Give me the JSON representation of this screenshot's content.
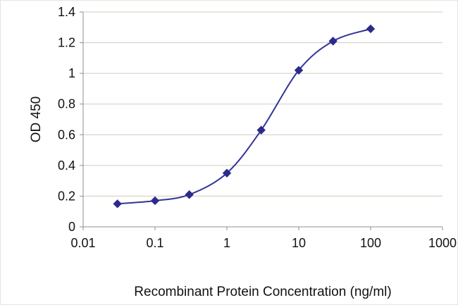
{
  "chart_data": {
    "type": "line",
    "x": [
      0.03,
      0.1,
      0.3,
      1,
      3,
      10,
      30,
      100
    ],
    "y": [
      0.15,
      0.17,
      0.21,
      0.35,
      0.63,
      1.02,
      1.21,
      1.29
    ],
    "title": "",
    "xlabel": "Recombinant Protein Concentration (ng/ml)",
    "ylabel": "OD 450",
    "x_scale": "log",
    "xlim": [
      0.01,
      1000
    ],
    "ylim": [
      0,
      1.4
    ],
    "x_ticks": [
      0.01,
      0.1,
      1,
      10,
      100,
      1000
    ],
    "x_tick_labels": [
      "0.01",
      "0.1",
      "1",
      "10",
      "100",
      "1000"
    ],
    "y_ticks": [
      0,
      0.2,
      0.4,
      0.6,
      0.8,
      1,
      1.2,
      1.4
    ],
    "y_tick_labels": [
      "0",
      "0.2",
      "0.4",
      "0.6",
      "0.8",
      "1",
      "1.2",
      "1.4"
    ],
    "grid": "horizontal",
    "legend": "none",
    "marker": "diamond",
    "line_color": "#333399",
    "marker_color": "#2b2b8c",
    "grid_color": "#d0ccba",
    "axis_color": "#8f8f8f",
    "text_color": "#111111"
  }
}
